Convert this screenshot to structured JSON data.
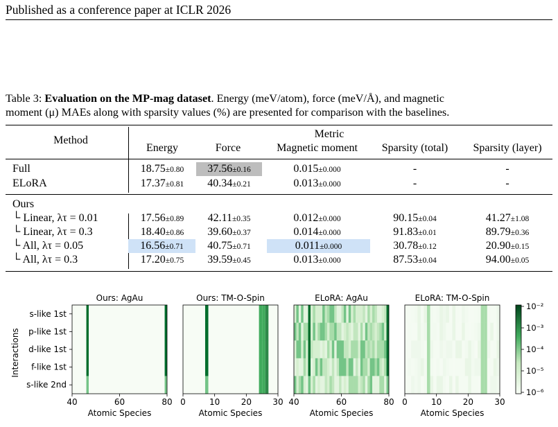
{
  "header": {
    "running_head": "Published as a conference paper at ICLR 2026"
  },
  "caption": {
    "label": "Table 3:",
    "title": "Evaluation on the MP-mag dataset",
    "line1_rest": ". Energy (meV/atom), force (meV/Å), and magnetic",
    "line2": "moment (μ) MAEs along with sparsity values (%) are presented for comparison with the baselines."
  },
  "table": {
    "method_header": "Method",
    "metric_header": "Metric",
    "columns": [
      "Energy",
      "Force",
      "Magnetic moment",
      "Sparsity (total)",
      "Sparsity (layer)"
    ],
    "baselines": [
      {
        "name": "Full",
        "energy": "18.75",
        "energy_std": "±0.80",
        "force": "37.56",
        "force_std": "±0.16",
        "mag": "0.015",
        "mag_std": "±0.000",
        "sp_total": "-",
        "sp_total_std": "",
        "sp_layer": "-",
        "sp_layer_std": ""
      },
      {
        "name": "ELoRA",
        "energy": "17.37",
        "energy_std": "±0.81",
        "force": "40.34",
        "force_std": "±0.21",
        "mag": "0.013",
        "mag_std": "±0.000",
        "sp_total": "-",
        "sp_total_std": "",
        "sp_layer": "-",
        "sp_layer_std": ""
      }
    ],
    "ours_label": "Ours",
    "ours": [
      {
        "name": "└ Linear, λτ = 0.01",
        "energy": "17.56",
        "energy_std": "±0.89",
        "force": "42.11",
        "force_std": "±0.35",
        "mag": "0.012",
        "mag_std": "±0.000",
        "sp_total": "90.15",
        "sp_total_std": "±0.04",
        "sp_layer": "41.27",
        "sp_layer_std": "±1.08"
      },
      {
        "name": "└ Linear, λτ = 0.3",
        "energy": "18.40",
        "energy_std": "±0.86",
        "force": "39.60",
        "force_std": "±0.37",
        "mag": "0.014",
        "mag_std": "±0.000",
        "sp_total": "91.83",
        "sp_total_std": "±0.01",
        "sp_layer": "89.79",
        "sp_layer_std": "±0.36"
      },
      {
        "name": "└ All, λτ = 0.05",
        "energy": "16.56",
        "energy_std": "±0.71",
        "force": "40.75",
        "force_std": "±0.71",
        "mag": "0.011",
        "mag_std": "±0.000",
        "sp_total": "30.78",
        "sp_total_std": "±0.12",
        "sp_layer": "20.90",
        "sp_layer_std": "±0.15"
      },
      {
        "name": "└ All, λτ = 0.3",
        "energy": "17.20",
        "energy_std": "±0.75",
        "force": "39.59",
        "force_std": "±0.45",
        "mag": "0.013",
        "mag_std": "±0.000",
        "sp_total": "87.53",
        "sp_total_std": "±0.04",
        "sp_layer": "94.00",
        "sp_layer_std": "±0.05"
      }
    ],
    "highlight_colors": {
      "gray": "#bdbdbd",
      "blue": "#cfe2f7"
    }
  },
  "chart_data": {
    "type": "heatmap",
    "ylabel": "Interactions",
    "rows": [
      "s-like 1st",
      "p-like 1st",
      "d-like 1st",
      "f-like 1st",
      "s-like 2nd"
    ],
    "colorbar": {
      "scale": "log",
      "ticks": [
        "10⁻²",
        "10⁻³",
        "10⁻⁴",
        "10⁻⁵",
        "10⁻⁶"
      ],
      "colormap": "greens"
    },
    "panels": [
      {
        "title": "Ours: AgAu",
        "xlabel": "Atomic Species",
        "xlim": [
          40,
          80
        ],
        "xticks": [
          "40",
          "60",
          "80"
        ],
        "background": "sparse",
        "active_columns": [
          46,
          79
        ]
      },
      {
        "title": "Ours: TM-O-Spin",
        "xlabel": "Atomic Species",
        "xlim": [
          0,
          30
        ],
        "xticks": [
          "0",
          "10",
          "20",
          "30"
        ],
        "background": "sparse",
        "active_columns": [
          7,
          24,
          25,
          26
        ]
      },
      {
        "title": "ELoRA: AgAu",
        "xlabel": "Atomic Species",
        "xlim": [
          40,
          80
        ],
        "xticks": [
          "40",
          "60",
          "80"
        ],
        "background": "dense",
        "active_columns": [
          46,
          79
        ]
      },
      {
        "title": "ELoRA: TM-O-Spin",
        "xlabel": "Atomic Species",
        "xlim": [
          0,
          30
        ],
        "xticks": [
          "0",
          "10",
          "20",
          "30"
        ],
        "background": "faint",
        "active_columns": [
          7,
          24,
          25
        ]
      }
    ]
  }
}
